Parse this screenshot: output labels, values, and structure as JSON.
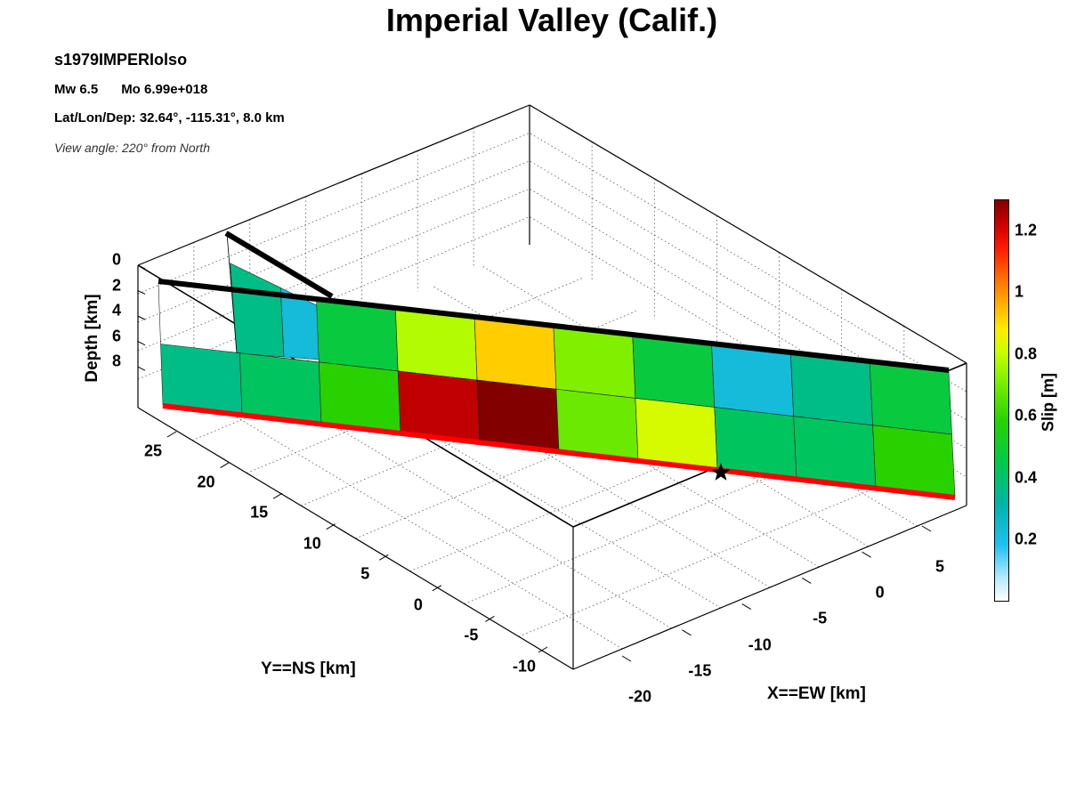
{
  "chart_data": {
    "type": "heatmap",
    "title": "Imperial Valley (Calif.)",
    "event_id": "s1979IMPERIolso",
    "magnitude_line": {
      "mw": "Mw 6.5",
      "mo": "Mo 6.99e+018"
    },
    "location_line": "Lat/Lon/Dep: 32.64°, -115.31°, 8.0 km",
    "view_line": "View angle: 220° from North",
    "zlabel": "Depth [km]",
    "ylabel": "Y==NS [km]",
    "xlabel": "X==EW [km]",
    "colorbar_label": "Slip [m]",
    "zticks": [
      "0",
      "2",
      "4",
      "6",
      "8"
    ],
    "yticks": [
      "25",
      "20",
      "15",
      "10",
      "5",
      "0",
      "-5",
      "-10"
    ],
    "xticks": [
      "5",
      "0",
      "-5",
      "-10",
      "-15",
      "-20"
    ],
    "colorbar_ticks": [
      "1.2",
      "1",
      "0.8",
      "0.6",
      "0.4",
      "0.2"
    ],
    "colorbar_range": [
      0,
      1.3
    ],
    "grid": true,
    "slip_top_row": [
      0.45,
      0.75,
      0.9,
      0.68,
      0.45,
      0.22,
      0.35,
      0.45
    ],
    "slip_bottom_row": [
      0.35,
      0.4,
      0.55,
      1.2,
      1.3,
      0.65,
      0.8,
      0.4,
      0.4,
      0.55
    ],
    "slip_top_row_west": [
      0.35,
      0.22
    ],
    "hypocenter": {
      "x_km": 0,
      "y_km": 0,
      "depth_km": 8.0
    }
  }
}
